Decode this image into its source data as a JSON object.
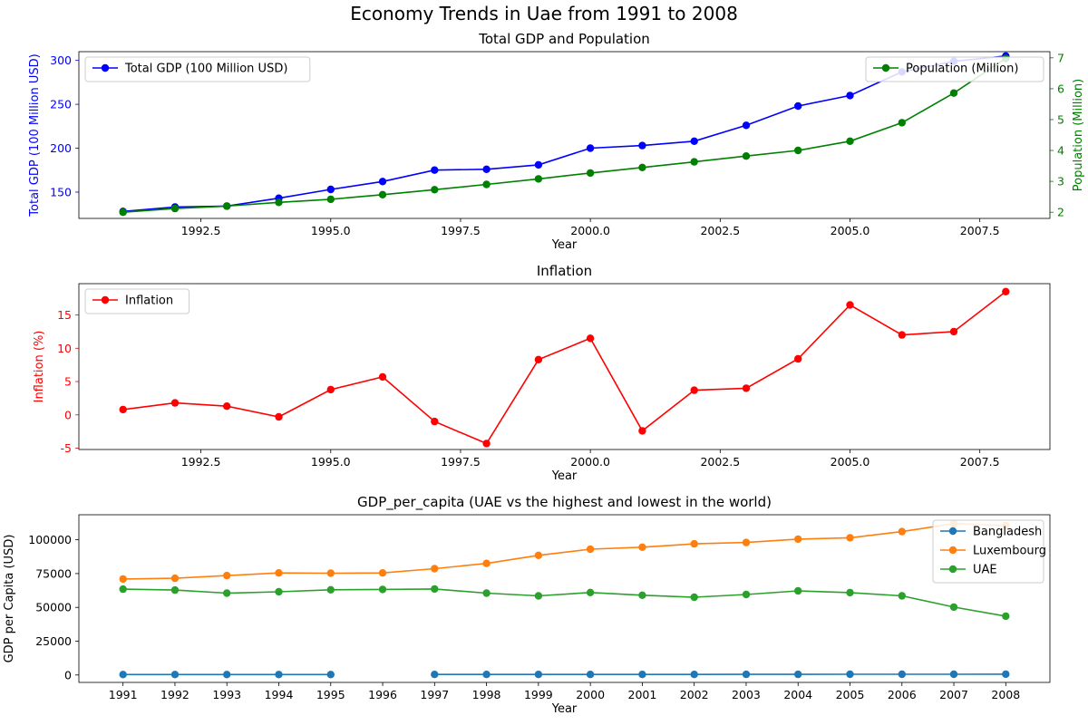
{
  "suptitle": "Economy Trends in Uae from 1991 to 2008",
  "colors": {
    "gdp": "#0000ff",
    "population": "#008000",
    "inflation": "#ff0000",
    "bangladesh": "#1f77b4",
    "luxembourg": "#ff7f0e",
    "uae": "#2ca02c"
  },
  "chart_data": [
    {
      "type": "line",
      "title": "Total GDP and Population",
      "xlabel": "Year",
      "x": [
        1991,
        1992,
        1993,
        1994,
        1995,
        1996,
        1997,
        1998,
        1999,
        2000,
        2001,
        2002,
        2003,
        2004,
        2005,
        2006,
        2007,
        2008
      ],
      "xlim": [
        1990.15,
        2008.85
      ],
      "xticks": [
        1992.5,
        1995.0,
        1997.5,
        2000.0,
        2002.5,
        2005.0,
        2007.5
      ],
      "xtick_labels": [
        "1992.5",
        "1995.0",
        "1997.5",
        "2000.0",
        "2002.5",
        "2005.0",
        "2007.5"
      ],
      "ylabel": "Total GDP (100 Million USD)",
      "ylim": [
        120,
        310
      ],
      "yticks": [
        150,
        200,
        250,
        300
      ],
      "y2label": "Population (Million)",
      "y2lim": [
        1.8,
        7.2
      ],
      "y2ticks": [
        2,
        3,
        4,
        5,
        6,
        7
      ],
      "series": [
        {
          "name": "Total GDP (100 Million USD)",
          "axis": "left",
          "color": "#0000ff",
          "values": [
            128,
            133,
            134,
            143,
            153,
            162,
            175,
            176,
            181,
            200,
            203,
            208,
            226,
            248,
            260,
            287,
            299,
            305
          ]
        },
        {
          "name": "Population (Million)",
          "axis": "right",
          "color": "#008000",
          "values": [
            2.0,
            2.12,
            2.2,
            2.32,
            2.42,
            2.57,
            2.73,
            2.9,
            3.08,
            3.27,
            3.45,
            3.63,
            3.82,
            4.0,
            4.3,
            4.9,
            5.86,
            6.98
          ]
        }
      ],
      "legends": [
        {
          "position": "upper-left",
          "series": [
            0
          ]
        },
        {
          "position": "upper-right",
          "series": [
            1
          ]
        }
      ]
    },
    {
      "type": "line",
      "title": "Inflation",
      "xlabel": "Year",
      "x": [
        1991,
        1992,
        1993,
        1994,
        1995,
        1996,
        1997,
        1998,
        1999,
        2000,
        2001,
        2002,
        2003,
        2004,
        2005,
        2006,
        2007,
        2008
      ],
      "xlim": [
        1990.15,
        2008.85
      ],
      "xticks": [
        1992.5,
        1995.0,
        1997.5,
        2000.0,
        2002.5,
        2005.0,
        2007.5
      ],
      "xtick_labels": [
        "1992.5",
        "1995.0",
        "1997.5",
        "2000.0",
        "2002.5",
        "2005.0",
        "2007.5"
      ],
      "ylabel": "Inflation (%)",
      "ylim": [
        -5.2,
        19.7
      ],
      "yticks": [
        -5,
        0,
        5,
        10,
        15
      ],
      "series": [
        {
          "name": "Inflation",
          "axis": "left",
          "color": "#ff0000",
          "values": [
            0.8,
            1.8,
            1.3,
            -0.3,
            3.8,
            5.7,
            -1.0,
            -4.3,
            8.3,
            11.5,
            -2.4,
            3.7,
            4.0,
            8.4,
            16.5,
            12.0,
            12.5,
            18.5
          ]
        }
      ],
      "legends": [
        {
          "position": "upper-left",
          "series": [
            0
          ]
        }
      ]
    },
    {
      "type": "line",
      "title": "GDP_per_capita (UAE vs the highest and lowest in the world)",
      "xlabel": "Year",
      "x": [
        1991,
        1992,
        1993,
        1994,
        1995,
        1996,
        1997,
        1998,
        1999,
        2000,
        2001,
        2002,
        2003,
        2004,
        2005,
        2006,
        2007,
        2008
      ],
      "xlim": [
        1990.15,
        2008.85
      ],
      "xticks": [
        1991,
        1992,
        1993,
        1994,
        1995,
        1996,
        1997,
        1998,
        1999,
        2000,
        2001,
        2002,
        2003,
        2004,
        2005,
        2006,
        2007,
        2008
      ],
      "xtick_labels": [
        "1991",
        "1992",
        "1993",
        "1994",
        "1995",
        "1996",
        "1997",
        "1998",
        "1999",
        "2000",
        "2001",
        "2002",
        "2003",
        "2004",
        "2005",
        "2006",
        "2007",
        "2008"
      ],
      "ylabel": "GDP per Capita (USD)",
      "ylim": [
        -5500,
        118500
      ],
      "yticks": [
        0,
        25000,
        50000,
        75000,
        100000
      ],
      "series": [
        {
          "name": "Bangladesh",
          "axis": "left",
          "color": "#1f77b4",
          "values": [
            350,
            340,
            340,
            345,
            360,
            null,
            390,
            400,
            410,
            420,
            420,
            430,
            450,
            480,
            500,
            530,
            560,
            610
          ]
        },
        {
          "name": "Luxembourg",
          "axis": "left",
          "color": "#ff7f0e",
          "values": [
            71000,
            71500,
            73500,
            75500,
            75300,
            75500,
            78600,
            82500,
            88500,
            93000,
            94500,
            97000,
            98000,
            100500,
            101500,
            106000,
            112000,
            110500
          ]
        },
        {
          "name": "UAE",
          "axis": "left",
          "color": "#2ca02c",
          "values": [
            63500,
            62800,
            60500,
            61500,
            63000,
            63300,
            63600,
            60500,
            58500,
            61000,
            59000,
            57500,
            59500,
            62200,
            60900,
            58500,
            50200,
            43500
          ]
        }
      ],
      "legends": [
        {
          "position": "upper-right",
          "series": [
            0,
            1,
            2
          ]
        }
      ]
    }
  ]
}
